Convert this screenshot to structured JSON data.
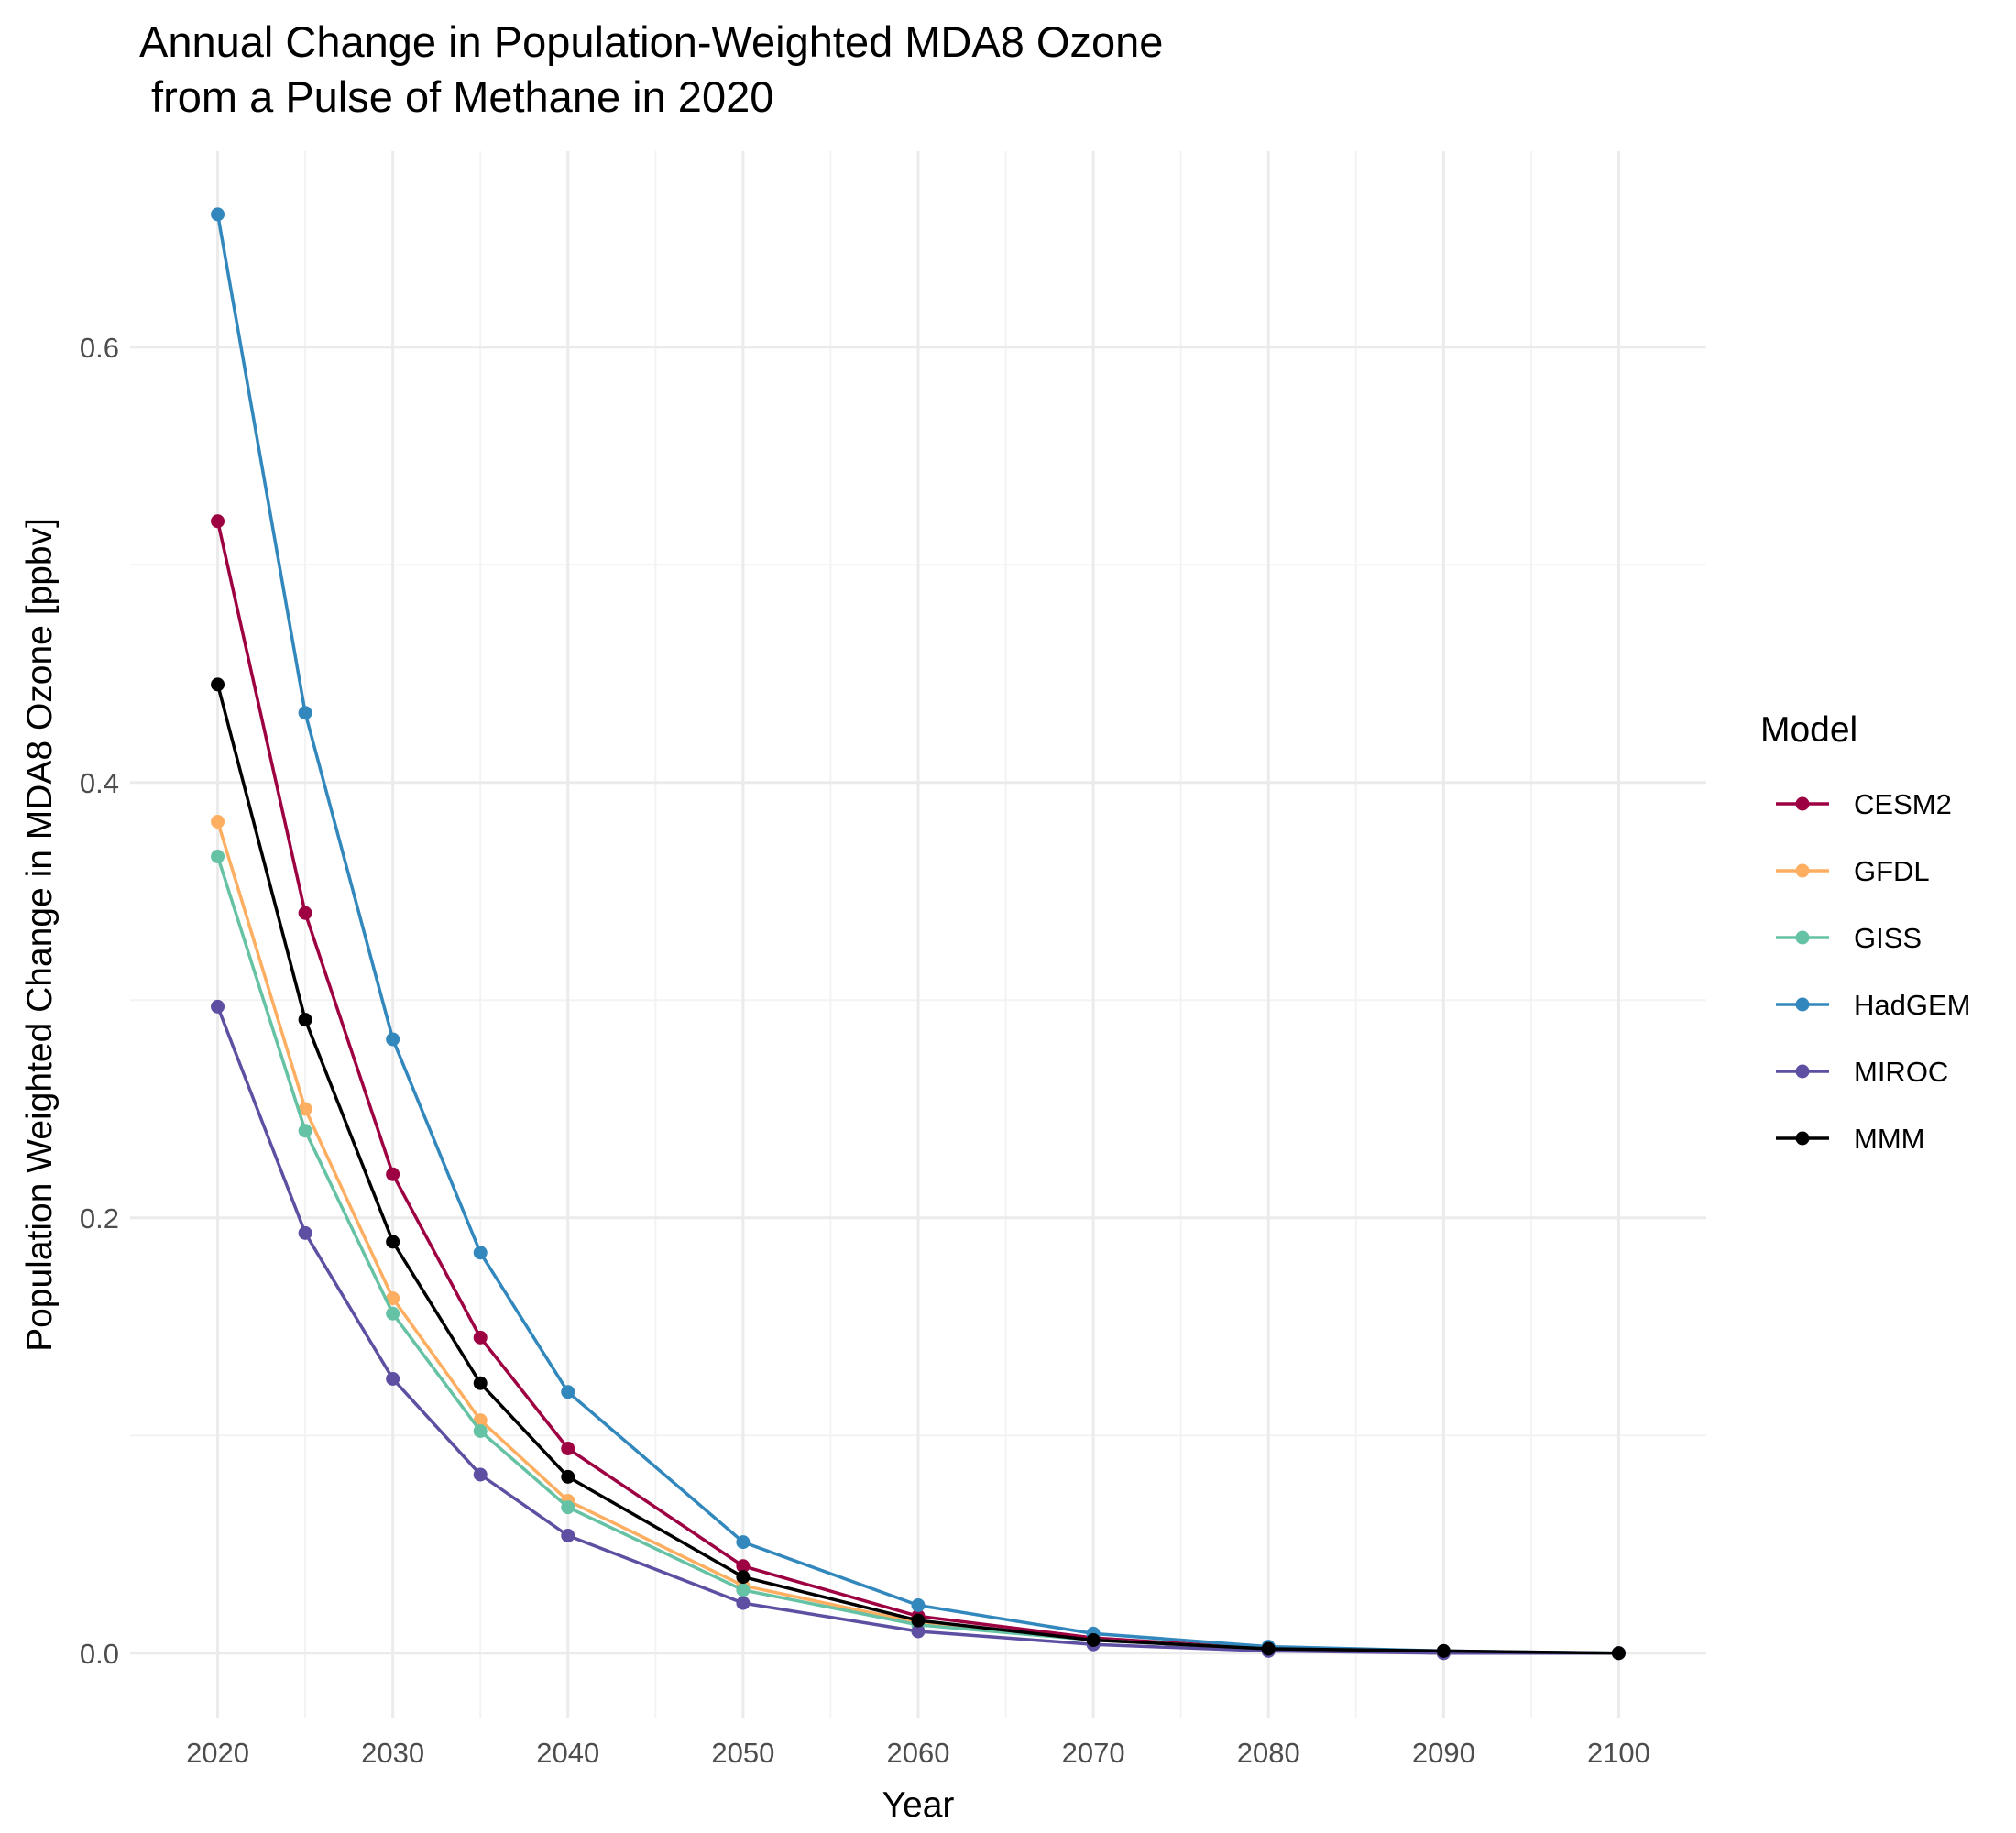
{
  "chart_data": {
    "type": "line",
    "title_line1": "Annual Change in Population-Weighted MDA8 Ozone",
    "title_line2": " from a Pulse of Methane in 2020",
    "xlabel": "Year",
    "ylabel": "Population Weighted Change in MDA8 Ozone [ppbv]",
    "xlim": [
      2015,
      2105
    ],
    "ylim": [
      -0.03,
      0.69
    ],
    "x_ticks": [
      2020,
      2030,
      2040,
      2050,
      2060,
      2070,
      2080,
      2090,
      2100
    ],
    "x_tick_labels": [
      "2020",
      "2030",
      "2040",
      "2050",
      "2060",
      "2070",
      "2080",
      "2090",
      "2100"
    ],
    "y_ticks": [
      0.0,
      0.2,
      0.4,
      0.6
    ],
    "y_tick_labels": [
      "0.0",
      "0.2",
      "0.4",
      "0.6"
    ],
    "grid": true,
    "legend_title": "Model",
    "legend_position": "right",
    "x": [
      2020,
      2025,
      2030,
      2035,
      2040,
      2050,
      2060,
      2070,
      2080,
      2090,
      2100
    ],
    "series": [
      {
        "name": "CESM2",
        "color": "#9e0142",
        "values": [
          0.52,
          0.34,
          0.22,
          0.145,
          0.094,
          0.04,
          0.017,
          0.007,
          0.002,
          0.0,
          0.0
        ]
      },
      {
        "name": "GFDL",
        "color": "#fdae61",
        "values": [
          0.382,
          0.25,
          0.163,
          0.107,
          0.07,
          0.031,
          0.014,
          0.006,
          0.002,
          0.0,
          0.0
        ]
      },
      {
        "name": "GISS",
        "color": "#66c2a5",
        "values": [
          0.366,
          0.24,
          0.156,
          0.102,
          0.067,
          0.029,
          0.013,
          0.006,
          0.002,
          0.0,
          0.0
        ]
      },
      {
        "name": "HadGEM",
        "color": "#3288bd",
        "values": [
          0.661,
          0.432,
          0.282,
          0.184,
          0.12,
          0.051,
          0.022,
          0.009,
          0.003,
          0.001,
          0.0
        ]
      },
      {
        "name": "MIROC",
        "color": "#5e4fa2",
        "values": [
          0.297,
          0.193,
          0.126,
          0.082,
          0.054,
          0.023,
          0.01,
          0.004,
          0.001,
          0.0,
          0.0
        ]
      },
      {
        "name": "MMM",
        "color": "#000000",
        "values": [
          0.445,
          0.291,
          0.189,
          0.124,
          0.081,
          0.035,
          0.015,
          0.006,
          0.002,
          0.001,
          0.0
        ]
      }
    ]
  }
}
